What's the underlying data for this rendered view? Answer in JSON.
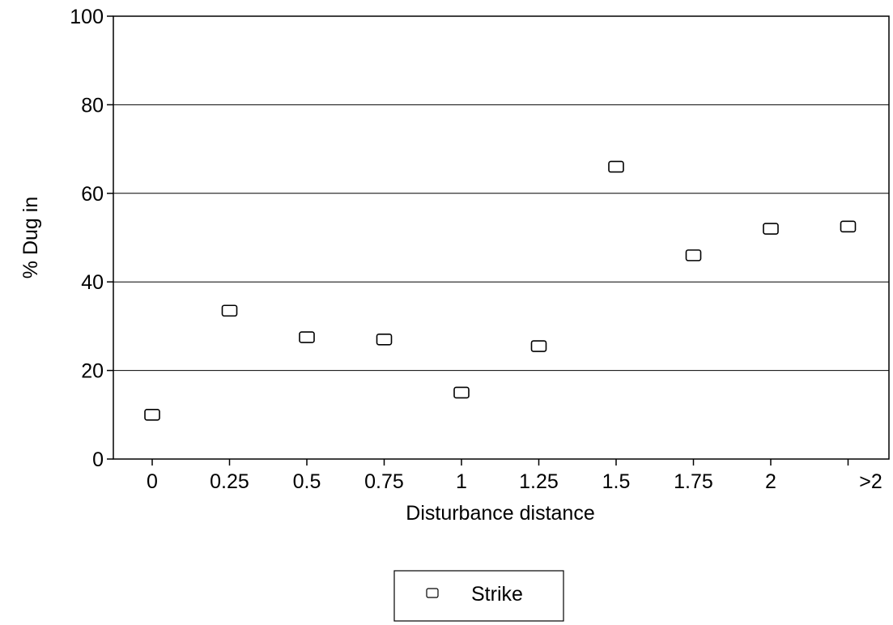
{
  "chart_data": {
    "type": "scatter",
    "xlabel": "Disturbance distance",
    "ylabel": "% Dug in",
    "categories": [
      "0",
      "0.25",
      "0.5",
      "0.75",
      "1",
      "1.25",
      "1.5",
      "1.75",
      "2",
      ">2"
    ],
    "ylim": [
      0,
      100
    ],
    "yticks": [
      "0",
      "20",
      "40",
      "60",
      "80",
      "100"
    ],
    "grid": "horizontal",
    "legend_position": "bottom-center",
    "series": [
      {
        "name": "Strike",
        "marker": "open-square",
        "values": [
          10,
          33.5,
          27.5,
          27,
          15,
          25.5,
          66,
          46,
          52,
          52.5
        ]
      }
    ]
  }
}
